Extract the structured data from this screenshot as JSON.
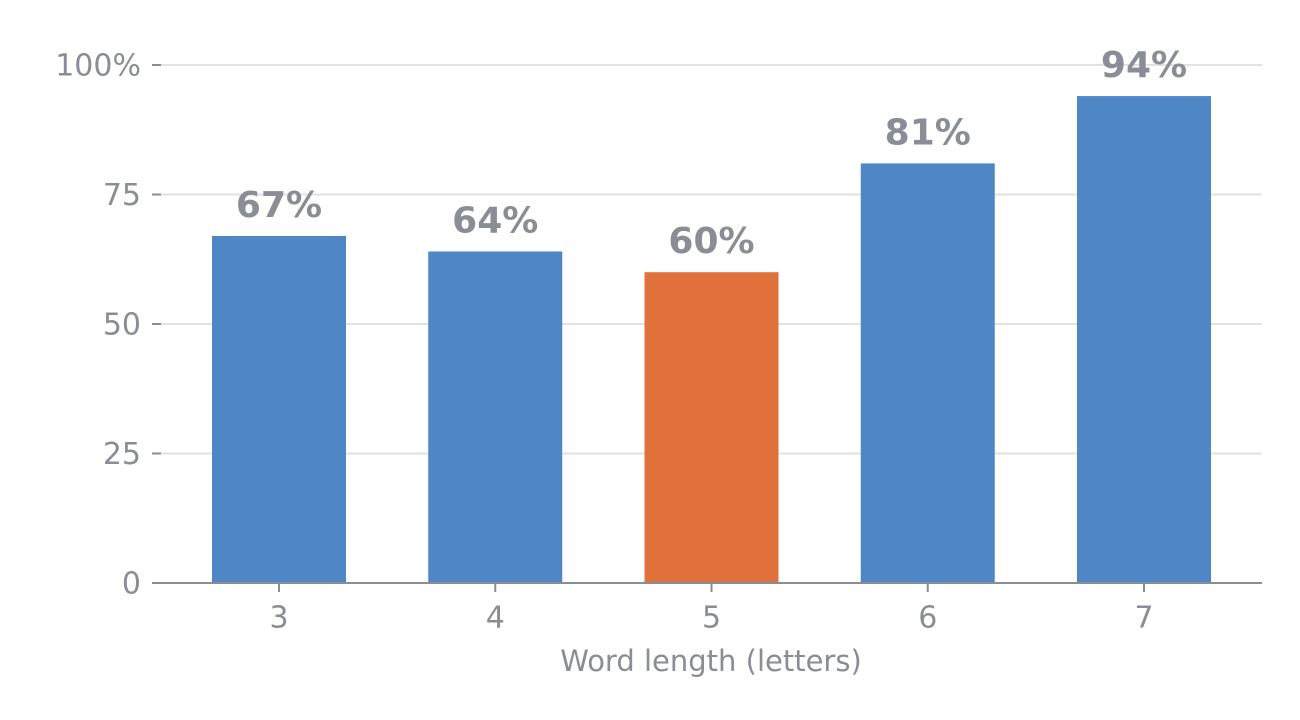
{
  "chart_data": {
    "type": "bar",
    "categories": [
      "3",
      "4",
      "5",
      "6",
      "7"
    ],
    "values": [
      67,
      64,
      60,
      81,
      94
    ],
    "value_labels": [
      "67%",
      "64%",
      "60%",
      "81%",
      "94%"
    ],
    "colors": [
      "#4e86c6",
      "#4e86c6",
      "#e0713b",
      "#4e86c6",
      "#4e86c6"
    ],
    "x_label": "Word length (letters)",
    "ylim": [
      0,
      100
    ],
    "yticks": [
      0,
      25,
      50,
      75,
      {
        "value": 100,
        "label": "100%"
      }
    ],
    "grid": true
  }
}
